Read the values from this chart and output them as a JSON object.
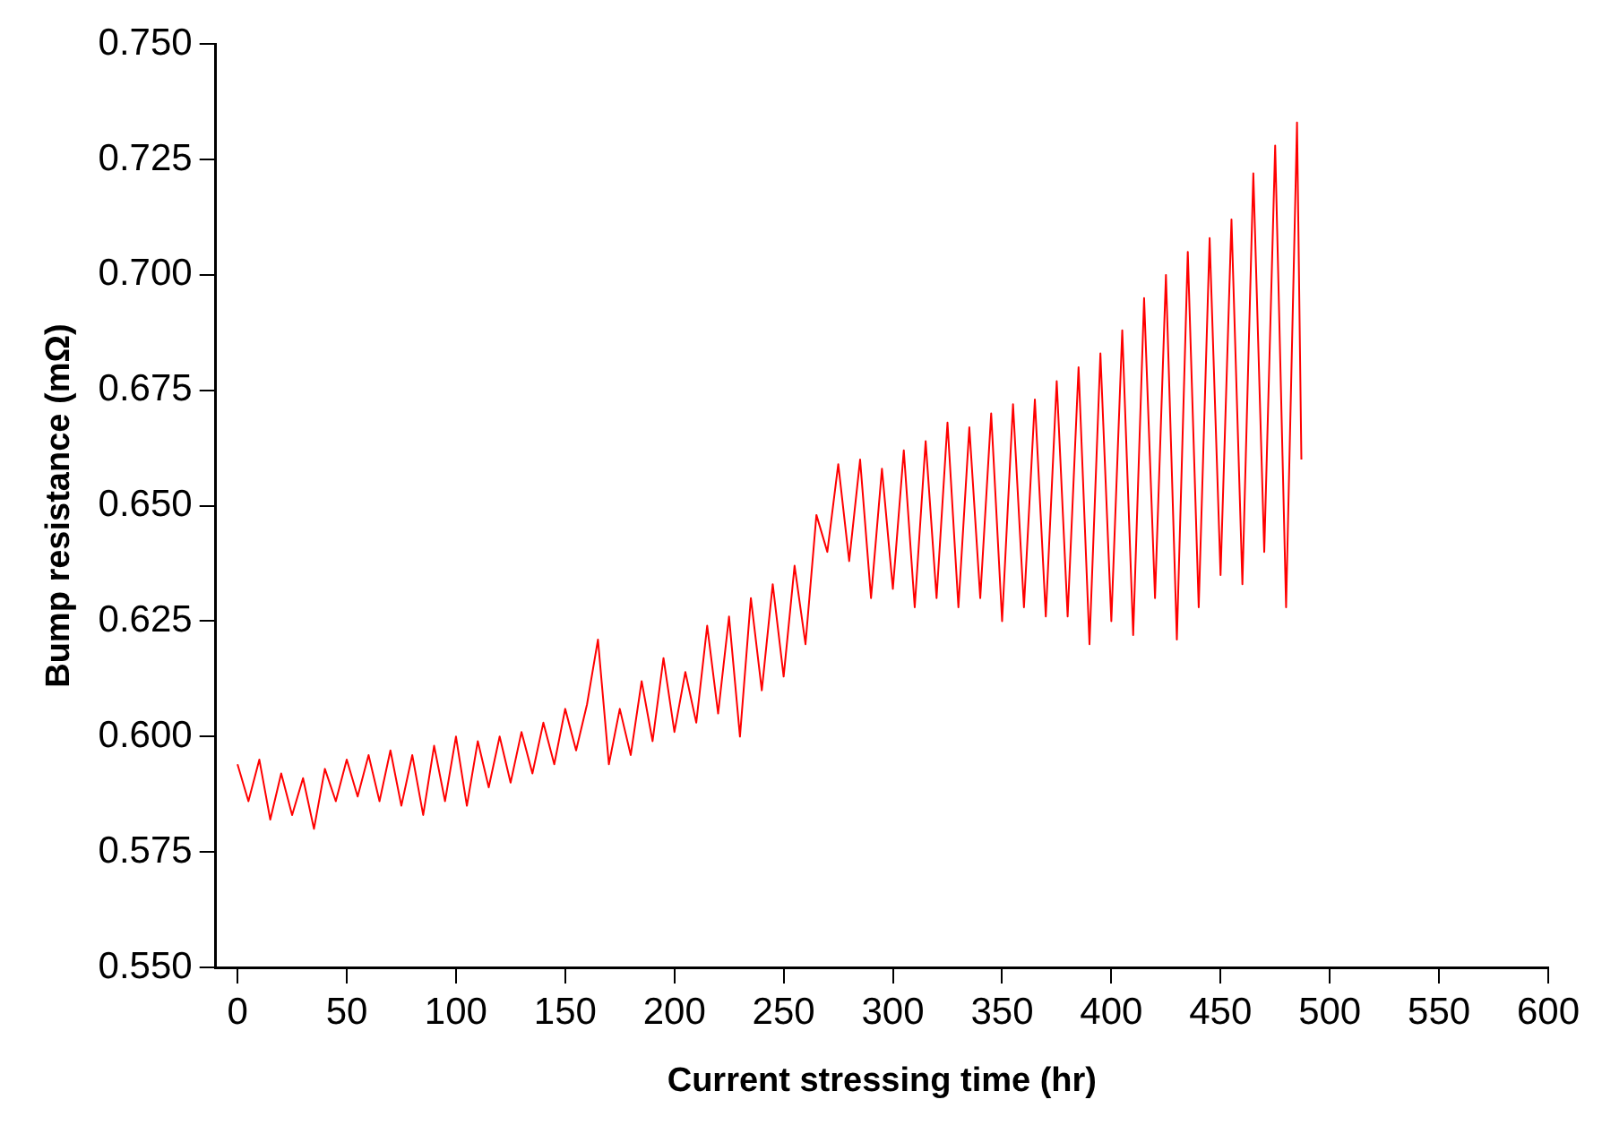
{
  "chart_data": {
    "type": "line",
    "xlabel": "Current stressing time (hr)",
    "ylabel": "Bump resistance (mΩ)",
    "xlim": [
      -10,
      600
    ],
    "xticks": [
      0,
      50,
      100,
      150,
      200,
      250,
      300,
      350,
      400,
      450,
      500,
      550,
      600
    ],
    "ylim": [
      0.55,
      0.75
    ],
    "yticks": [
      {
        "value": 0.55,
        "label": "0.550"
      },
      {
        "value": 0.575,
        "label": "0.575"
      },
      {
        "value": 0.6,
        "label": "0.600"
      },
      {
        "value": 0.625,
        "label": "0.625"
      },
      {
        "value": 0.65,
        "label": "0.650"
      },
      {
        "value": 0.675,
        "label": "0.675"
      },
      {
        "value": 0.7,
        "label": "0.700"
      },
      {
        "value": 0.725,
        "label": "0.725"
      },
      {
        "value": 0.75,
        "label": "0.750"
      }
    ],
    "marker": "none",
    "line_style": "solid",
    "legend": false,
    "grid": false,
    "series": [
      {
        "color": "#ff0000",
        "x": [
          0,
          5,
          10,
          15,
          20,
          25,
          30,
          35,
          40,
          45,
          50,
          55,
          60,
          65,
          70,
          75,
          80,
          85,
          90,
          95,
          100,
          105,
          110,
          115,
          120,
          125,
          130,
          135,
          140,
          145,
          150,
          155,
          160,
          165,
          170,
          175,
          180,
          185,
          190,
          195,
          200,
          205,
          210,
          215,
          220,
          225,
          230,
          235,
          240,
          245,
          250,
          255,
          260,
          265,
          270,
          275,
          280,
          285,
          290,
          295,
          300,
          305,
          310,
          315,
          320,
          325,
          330,
          335,
          340,
          345,
          350,
          355,
          360,
          365,
          370,
          375,
          380,
          385,
          390,
          395,
          400,
          405,
          410,
          415,
          420,
          425,
          430,
          435,
          440,
          445,
          450,
          455,
          460,
          465,
          470,
          475,
          480,
          485,
          487
        ],
        "values": [
          0.594,
          0.586,
          0.595,
          0.582,
          0.592,
          0.583,
          0.591,
          0.58,
          0.593,
          0.586,
          0.595,
          0.587,
          0.596,
          0.586,
          0.597,
          0.585,
          0.596,
          0.583,
          0.598,
          0.586,
          0.6,
          0.585,
          0.599,
          0.589,
          0.6,
          0.59,
          0.601,
          0.592,
          0.603,
          0.594,
          0.606,
          0.597,
          0.607,
          0.621,
          0.594,
          0.606,
          0.596,
          0.612,
          0.599,
          0.617,
          0.601,
          0.614,
          0.603,
          0.624,
          0.605,
          0.626,
          0.6,
          0.63,
          0.61,
          0.633,
          0.613,
          0.637,
          0.62,
          0.648,
          0.64,
          0.659,
          0.638,
          0.66,
          0.63,
          0.658,
          0.632,
          0.662,
          0.628,
          0.664,
          0.63,
          0.668,
          0.628,
          0.667,
          0.63,
          0.67,
          0.625,
          0.672,
          0.628,
          0.673,
          0.626,
          0.677,
          0.626,
          0.68,
          0.62,
          0.683,
          0.625,
          0.688,
          0.622,
          0.695,
          0.63,
          0.7,
          0.621,
          0.705,
          0.628,
          0.708,
          0.635,
          0.712,
          0.633,
          0.722,
          0.64,
          0.728,
          0.628,
          0.733,
          0.66
        ]
      }
    ]
  }
}
